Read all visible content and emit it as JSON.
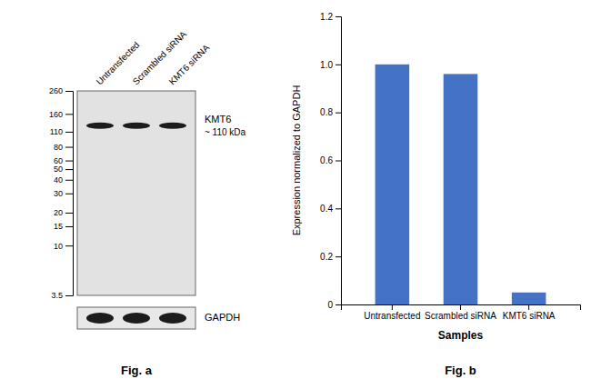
{
  "chart_data": [
    {
      "type": "blot",
      "title": "Fig. a",
      "categories": [
        "Untransfected",
        "Scrambled siRNA",
        "KMT6 siRNA"
      ],
      "log": "y",
      "ylim": [
        3.5,
        260
      ],
      "yticks": [
        260,
        160,
        110,
        80,
        60,
        50,
        40,
        30,
        20,
        15,
        10,
        3.5
      ],
      "series": [
        {
          "name": "KMT6",
          "values": [
            125,
            125,
            125
          ]
        }
      ],
      "annotations": [
        "~ 110 kDa",
        "GAPDH"
      ]
    },
    {
      "type": "bar",
      "title": "Fig. b",
      "categories": [
        "Untransfected",
        "Scrambled siRNA",
        "KMT6 siRNA"
      ],
      "values": [
        1.0,
        0.96,
        0.05
      ],
      "color": "#4472c4",
      "xlabel": "Samples",
      "ylabel": "Expression normalized to GAPDH",
      "ylim": [
        0,
        1.2
      ],
      "yticks": [
        0,
        0.2,
        0.4,
        0.6,
        0.8,
        {
          "value": 1.0,
          "label": "1.0"
        },
        1.2
      ]
    }
  ]
}
